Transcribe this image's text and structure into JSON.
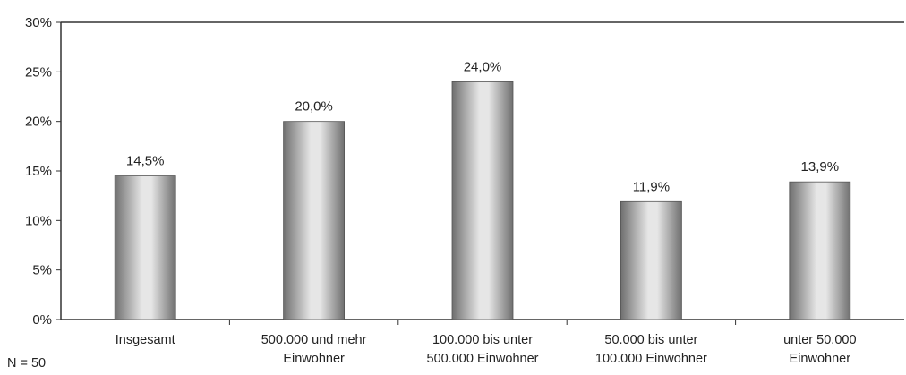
{
  "chart_data": {
    "type": "bar",
    "categories": [
      [
        "Insgesamt"
      ],
      [
        "500.000 und mehr",
        "Einwohner"
      ],
      [
        "100.000 bis unter",
        "500.000 Einwohner"
      ],
      [
        "50.000 bis unter",
        "100.000 Einwohner"
      ],
      [
        "unter 50.000",
        "Einwohner"
      ]
    ],
    "values": [
      14.5,
      20.0,
      24.0,
      11.9,
      13.9
    ],
    "data_labels": [
      "14,5%",
      "20,0%",
      "24,0%",
      "11,9%",
      "13,9%"
    ],
    "y_ticks": [
      0,
      5,
      10,
      15,
      20,
      25,
      30
    ],
    "y_tick_labels": [
      "0%",
      "5%",
      "10%",
      "15%",
      "20%",
      "25%",
      "30%"
    ],
    "ylim": [
      0,
      30
    ],
    "grid": false,
    "legend": "none",
    "colors": {
      "bar_dark": "#6f6f6f",
      "bar_light": "#e6e6e6",
      "axis": "#333333"
    }
  },
  "footnote": "N = 50"
}
